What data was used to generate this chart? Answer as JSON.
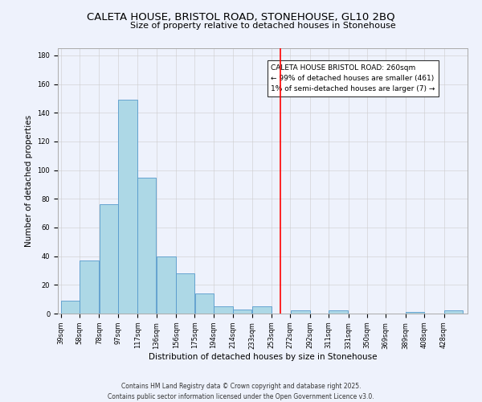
{
  "title": "CALETA HOUSE, BRISTOL ROAD, STONEHOUSE, GL10 2BQ",
  "subtitle": "Size of property relative to detached houses in Stonehouse",
  "xlabel": "Distribution of detached houses by size in Stonehouse",
  "ylabel": "Number of detached properties",
  "bar_color": "#add8e6",
  "bar_edge_color": "#5599cc",
  "background_color": "#eef2fc",
  "grid_color": "#cccccc",
  "bin_labels": [
    "39sqm",
    "58sqm",
    "78sqm",
    "97sqm",
    "117sqm",
    "136sqm",
    "156sqm",
    "175sqm",
    "194sqm",
    "214sqm",
    "233sqm",
    "253sqm",
    "272sqm",
    "292sqm",
    "311sqm",
    "331sqm",
    "350sqm",
    "369sqm",
    "389sqm",
    "408sqm",
    "428sqm"
  ],
  "bar_heights": [
    9,
    37,
    76,
    149,
    95,
    40,
    28,
    14,
    5,
    3,
    5,
    0,
    2,
    0,
    2,
    0,
    0,
    0,
    1,
    0,
    2
  ],
  "bin_edges": [
    39,
    58,
    78,
    97,
    117,
    136,
    156,
    175,
    194,
    214,
    233,
    253,
    272,
    292,
    311,
    331,
    350,
    369,
    389,
    408,
    428,
    447
  ],
  "vline_x": 262,
  "vline_color": "red",
  "ylim": [
    0,
    185
  ],
  "yticks": [
    0,
    20,
    40,
    60,
    80,
    100,
    120,
    140,
    160,
    180
  ],
  "annotation_title": "CALETA HOUSE BRISTOL ROAD: 260sqm",
  "annotation_line1": "← 99% of detached houses are smaller (461)",
  "annotation_line2": "1% of semi-detached houses are larger (7) →",
  "annotation_box_color": "white",
  "annotation_box_edge": "#333333",
  "footnote1": "Contains HM Land Registry data © Crown copyright and database right 2025.",
  "footnote2": "Contains public sector information licensed under the Open Government Licence v3.0.",
  "title_fontsize": 9.5,
  "subtitle_fontsize": 8,
  "label_fontsize": 7.5,
  "tick_fontsize": 6,
  "annotation_fontsize": 6.5,
  "footnote_fontsize": 5.5
}
